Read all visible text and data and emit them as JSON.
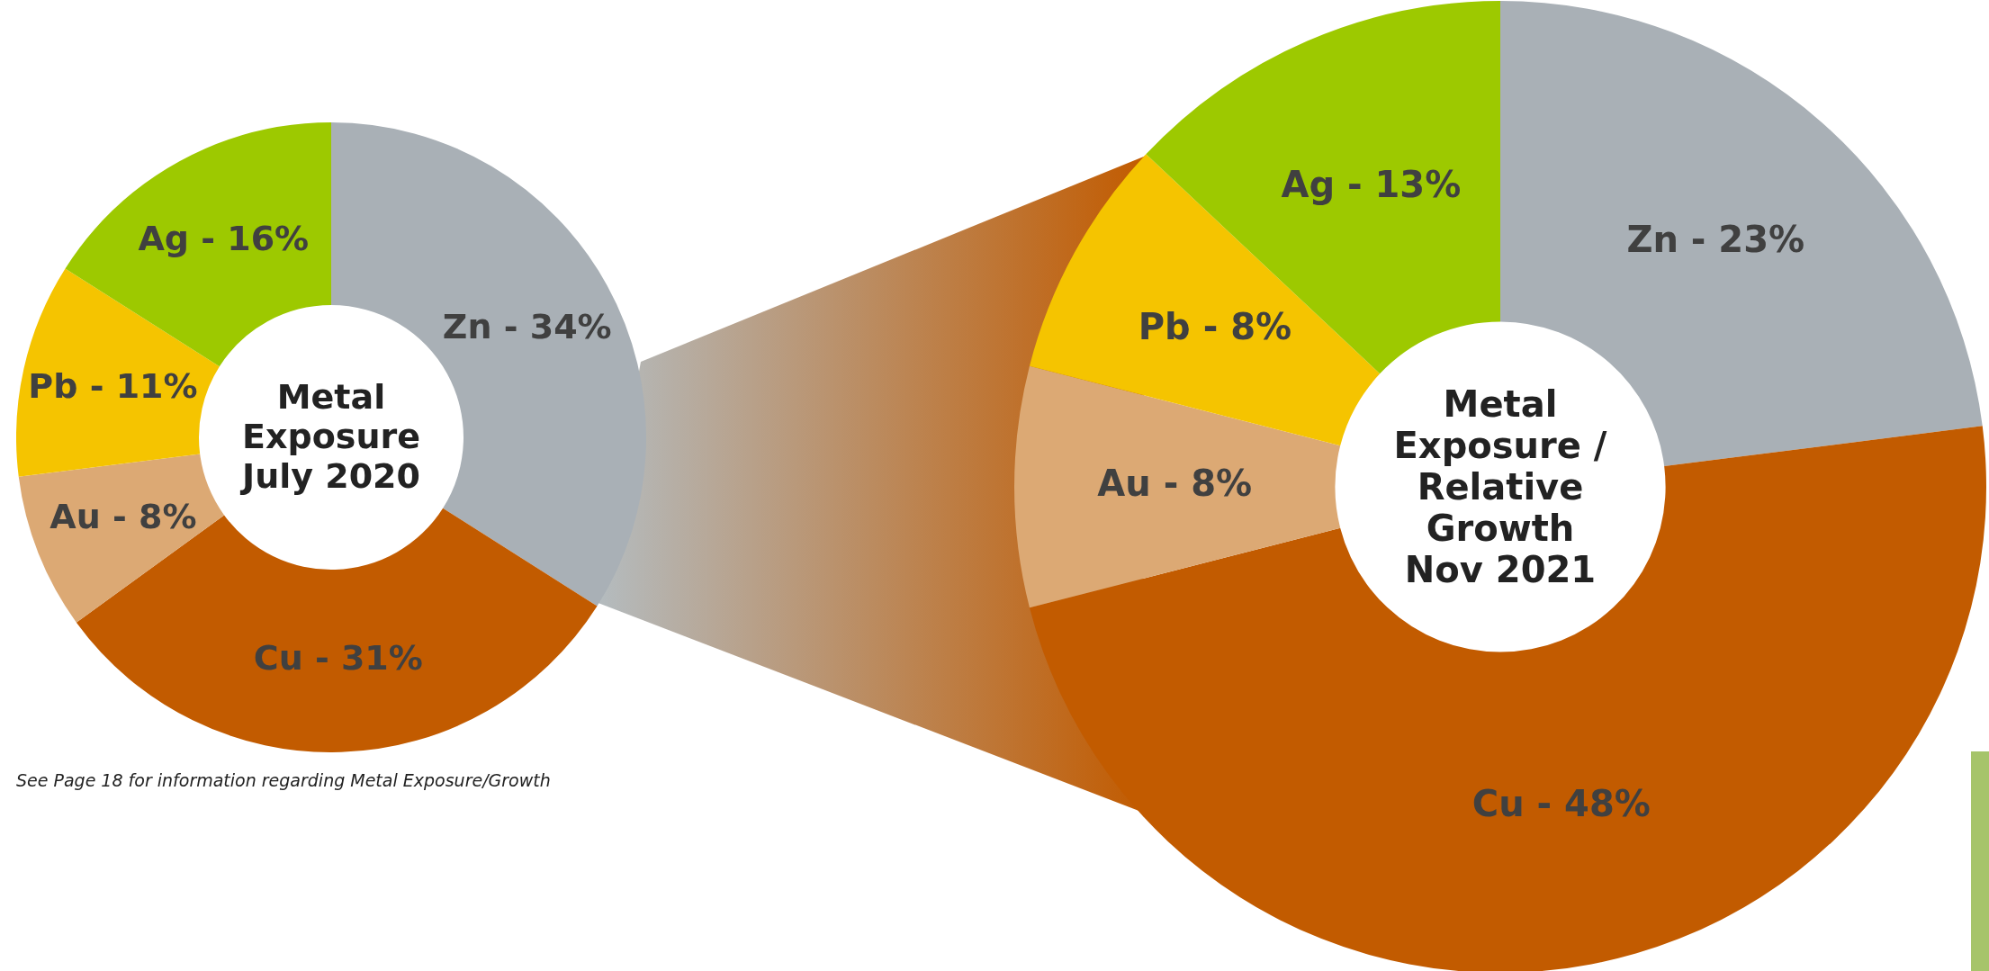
{
  "chart_data": [
    {
      "type": "donut",
      "title": "Metal Exposure July 2020",
      "categories": [
        "Zn -",
        "Cu -",
        "Au -",
        "Pb -",
        "Ag -"
      ],
      "values": [
        34,
        31,
        8,
        11,
        16
      ],
      "colors": [
        "#a9b0b6",
        "#c25b00",
        "#dca974",
        "#f5c400",
        "#9dc900"
      ],
      "value_labels": [
        "34%",
        "31%",
        "8%",
        "11%",
        "16%"
      ],
      "annotations": [
        "See Page 18 for information regarding Metal Exposure/Growth"
      ]
    },
    {
      "type": "donut",
      "title": "Metal Exposure / Relative Growth Nov 2021",
      "categories": [
        "Zn -",
        "Cu -",
        "Au -",
        "Pb -",
        "Ag -"
      ],
      "values": [
        23,
        48,
        8,
        8,
        13
      ],
      "colors": [
        "#a9b0b6",
        "#c25b00",
        "#dca974",
        "#f5c400",
        "#9dc900"
      ],
      "value_labels": [
        "23%",
        "48%",
        "8%",
        "8%",
        "13%"
      ]
    }
  ]
}
